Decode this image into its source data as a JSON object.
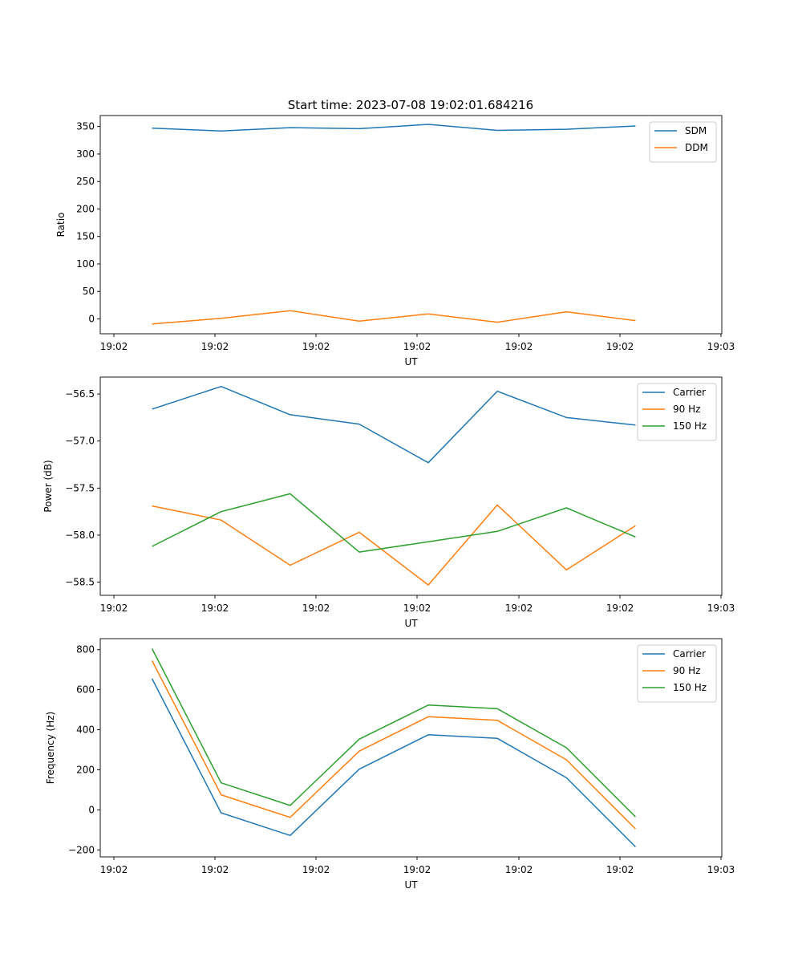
{
  "figure_title": "Start time: 2023-07-08 19:02:01.684216",
  "chart_data": [
    {
      "type": "line",
      "title": "Start time: 2023-07-08 19:02:01.684216",
      "xlabel": "UT",
      "ylabel": "Ratio",
      "x_tick_labels": [
        "19:02",
        "19:02",
        "19:02",
        "19:02",
        "19:02",
        "19:02",
        "19:03"
      ],
      "x": [
        1,
        2,
        3,
        4,
        5,
        6,
        7,
        8
      ],
      "xlim": [
        0.25,
        9.25
      ],
      "ylim": [
        -27,
        370
      ],
      "yticks": [
        0,
        50,
        100,
        150,
        200,
        250,
        300,
        350
      ],
      "legend_position": "top-right",
      "grid": false,
      "series": [
        {
          "name": "SDM",
          "color": "#1f77b4",
          "values": [
            347,
            342,
            348,
            346,
            354,
            343,
            345,
            351
          ]
        },
        {
          "name": "DDM",
          "color": "#ff7f0e",
          "values": [
            -9,
            1,
            15,
            -4,
            9,
            -6,
            13,
            -3
          ]
        }
      ]
    },
    {
      "type": "line",
      "title": "",
      "xlabel": "UT",
      "ylabel": "Power (dB)",
      "x_tick_labels": [
        "19:02",
        "19:02",
        "19:02",
        "19:02",
        "19:02",
        "19:02",
        "19:03"
      ],
      "x": [
        1,
        2,
        3,
        4,
        5,
        6,
        7,
        8
      ],
      "xlim": [
        0.25,
        9.25
      ],
      "ylim": [
        -58.64,
        -56.32
      ],
      "yticks": [
        -58.5,
        -58.0,
        -57.5,
        -57.0,
        -56.5
      ],
      "yticklabels": [
        "−58.5",
        "−58.0",
        "−57.5",
        "−57.0",
        "−56.5"
      ],
      "legend_position": "top-right",
      "grid": false,
      "series": [
        {
          "name": "Carrier",
          "color": "#1f77b4",
          "values": [
            -56.66,
            -56.42,
            -56.72,
            -56.82,
            -57.23,
            -56.47,
            -56.75,
            -56.83
          ]
        },
        {
          "name": "90 Hz",
          "color": "#ff7f0e",
          "values": [
            -57.69,
            -57.84,
            -58.32,
            -57.97,
            -58.53,
            -57.68,
            -58.37,
            -57.9
          ]
        },
        {
          "name": "150 Hz",
          "color": "#2ca02c",
          "values": [
            -58.12,
            -57.75,
            -57.56,
            -58.18,
            -58.07,
            -57.96,
            -57.71,
            -58.02
          ]
        }
      ]
    },
    {
      "type": "line",
      "title": "",
      "xlabel": "UT",
      "ylabel": "Frequency (Hz)",
      "x_tick_labels": [
        "19:02",
        "19:02",
        "19:02",
        "19:02",
        "19:02",
        "19:02",
        "19:03"
      ],
      "x": [
        1,
        2,
        3,
        4,
        5,
        6,
        7,
        8
      ],
      "xlim": [
        0.25,
        9.25
      ],
      "ylim": [
        -235,
        855
      ],
      "yticks": [
        -200,
        0,
        200,
        400,
        600,
        800
      ],
      "yticklabels": [
        "−200",
        "0",
        "200",
        "400",
        "600",
        "800"
      ],
      "legend_position": "top-right",
      "grid": false,
      "series": [
        {
          "name": "Carrier",
          "color": "#1f77b4",
          "values": [
            655,
            -15,
            -128,
            203,
            375,
            357,
            160,
            -185
          ]
        },
        {
          "name": "90 Hz",
          "color": "#ff7f0e",
          "values": [
            745,
            75,
            -38,
            293,
            465,
            447,
            250,
            -95
          ]
        },
        {
          "name": "150 Hz",
          "color": "#2ca02c",
          "values": [
            805,
            135,
            22,
            353,
            523,
            505,
            310,
            -35
          ]
        }
      ]
    }
  ]
}
